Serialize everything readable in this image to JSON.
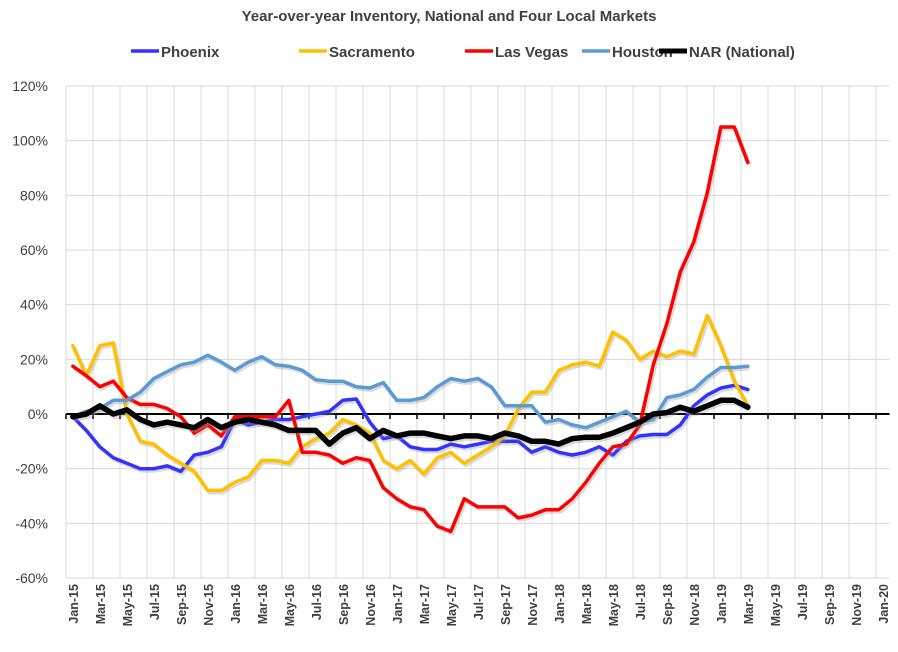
{
  "chart_data": {
    "type": "line",
    "title": "Year-over-year Inventory, National and Four Local Markets",
    "xlabel": "",
    "ylabel": "",
    "ylim": [
      -60,
      120
    ],
    "y_ticks": [
      "-60%",
      "-40%",
      "-20%",
      "0%",
      "20%",
      "40%",
      "60%",
      "80%",
      "100%",
      "120%"
    ],
    "y_tick_values": [
      -60,
      -40,
      -20,
      0,
      20,
      40,
      60,
      80,
      100,
      120
    ],
    "x_tick_labels": [
      "Jan-15",
      "Mar-15",
      "May-15",
      "Jul-15",
      "Sep-15",
      "Nov-15",
      "Jan-16",
      "Mar-16",
      "May-16",
      "Jul-16",
      "Sep-16",
      "Nov-16",
      "Jan-17",
      "Mar-17",
      "May-17",
      "Jul-17",
      "Sep-17",
      "Nov-17",
      "Jan-18",
      "Mar-18",
      "May-18",
      "Jul-18",
      "Sep-18",
      "Nov-18",
      "Jan-19",
      "Mar-19",
      "May-19",
      "Jul-19",
      "Sep-19",
      "Nov-19",
      "Jan-20"
    ],
    "x_range": [
      "Jan-15",
      "Jan-20"
    ],
    "x_start": "Jan-15",
    "x_step": "1 month",
    "grid": true,
    "legend": "top",
    "series": [
      {
        "name": "Phoenix",
        "color": "#3333ff",
        "values": [
          -1,
          -6,
          -12,
          -16,
          -18,
          -20,
          -20,
          -19,
          -21,
          -15,
          -14,
          -12,
          -2,
          -4,
          -3,
          -2,
          -2,
          -1,
          0,
          1,
          5,
          5.5,
          -3,
          -9,
          -8,
          -12,
          -13,
          -13,
          -11,
          -12,
          -11,
          -10,
          -10,
          -10,
          -14,
          -12,
          -14,
          -15,
          -14,
          -12,
          -15,
          -10,
          -8,
          -7.5,
          -7.5,
          -4,
          3,
          7,
          9.5,
          10.5,
          9
        ]
      },
      {
        "name": "Sacramento",
        "color": "#ffc000",
        "values": [
          25,
          14,
          25,
          26,
          0,
          -10,
          -11,
          -15,
          -18,
          -21,
          -28,
          -28,
          -25,
          -23,
          -17,
          -17,
          -18,
          -12,
          -9,
          -7,
          -2,
          -4,
          -7,
          -17,
          -20,
          -17,
          -22,
          -16,
          -14,
          -18,
          -15,
          -12,
          -8,
          2,
          8,
          8,
          16,
          18,
          19,
          17.5,
          30,
          27,
          20,
          23,
          21,
          23,
          22,
          36,
          25,
          12,
          3
        ]
      },
      {
        "name": "Las Vegas",
        "color": "#ff0000",
        "values": [
          17.5,
          14,
          10,
          12,
          6,
          3.5,
          3.5,
          2,
          -1,
          -7,
          -4,
          -8,
          -1,
          -1,
          -1,
          -1,
          5,
          -14,
          -14,
          -15,
          -18,
          -16,
          -17,
          -27,
          -31,
          -34,
          -35,
          -41,
          -43,
          -31,
          -34,
          -34,
          -34,
          -38,
          -37,
          -35,
          -35,
          -31,
          -25,
          -18,
          -12,
          -11,
          -4,
          18,
          33,
          52,
          63,
          81,
          105,
          105,
          92
        ]
      },
      {
        "name": "Houston",
        "color": "#5b9bd5",
        "values": [
          -1,
          1,
          2,
          5,
          5,
          8,
          13,
          15.5,
          18,
          19,
          21.5,
          19,
          16,
          19,
          21,
          18,
          17.5,
          16,
          12.5,
          12,
          12,
          10,
          9.5,
          11.5,
          5,
          5,
          6,
          10,
          13,
          12,
          13,
          10,
          3,
          3,
          3,
          -3,
          -2,
          -4,
          -5,
          -3,
          -1,
          1,
          -3,
          -2,
          6,
          7,
          9,
          13.5,
          17,
          17,
          17.5
        ]
      },
      {
        "name": "NAR (National)",
        "color": "#000000",
        "values": [
          -1,
          0,
          3,
          0,
          1.5,
          -2,
          -4,
          -3,
          -4,
          -5,
          -2,
          -5,
          -3,
          -2,
          -3,
          -4,
          -6,
          -6,
          -6,
          -11,
          -7,
          -5,
          -9,
          -6,
          -8,
          -7,
          -7,
          -8,
          -9,
          -8,
          -8,
          -9,
          -7,
          -8,
          -10,
          -10,
          -11,
          -9,
          -8.5,
          -8.5,
          -7,
          -5,
          -3,
          0,
          0.5,
          2.5,
          1,
          3,
          5,
          5,
          2.5
        ]
      }
    ]
  }
}
